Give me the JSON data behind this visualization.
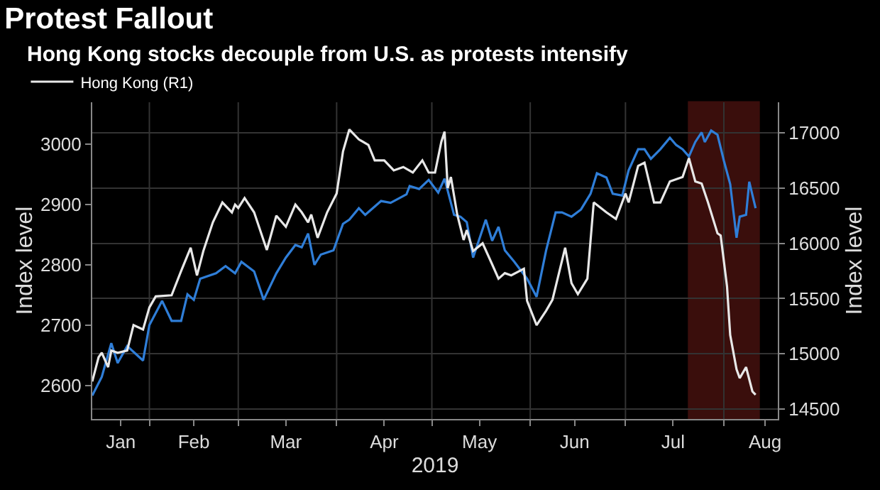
{
  "chart_data": {
    "type": "line",
    "title": "Protest Fallout",
    "subtitle": "Hong Kong stocks decouple from U.S. as protests intensify",
    "xlabel": "2019",
    "ylabel": "Index level",
    "y2label": "Index level",
    "series": [
      {
        "name": "Hong Kong (R1)",
        "color": "#e8e8e8",
        "axis": "y2",
        "x": [
          "2019-01-14",
          "2019-01-16",
          "2019-01-17",
          "2019-01-19",
          "2019-01-20",
          "2019-01-22",
          "2019-01-25",
          "2019-01-27",
          "2019-01-30",
          "2019-02-01",
          "2019-02-03",
          "2019-02-08",
          "2019-02-11",
          "2019-02-14",
          "2019-02-16",
          "2019-02-18",
          "2019-02-21",
          "2019-02-24",
          "2019-02-27",
          "2019-02-28",
          "2019-03-01",
          "2019-03-03",
          "2019-03-06",
          "2019-03-10",
          "2019-03-13",
          "2019-03-16",
          "2019-03-19",
          "2019-03-21",
          "2019-03-23",
          "2019-03-24",
          "2019-03-26",
          "2019-03-29",
          "2019-04-01",
          "2019-04-03",
          "2019-04-05",
          "2019-04-08",
          "2019-04-11",
          "2019-04-13",
          "2019-04-16",
          "2019-04-19",
          "2019-04-22",
          "2019-04-25",
          "2019-04-28",
          "2019-04-30",
          "2019-05-02",
          "2019-05-04",
          "2019-05-05",
          "2019-05-06",
          "2019-05-07",
          "2019-05-09",
          "2019-05-11",
          "2019-05-12",
          "2019-05-14",
          "2019-05-17",
          "2019-05-20",
          "2019-05-22",
          "2019-05-24",
          "2019-05-26",
          "2019-05-30",
          "2019-05-31",
          "2019-06-03",
          "2019-06-06",
          "2019-06-08",
          "2019-06-12",
          "2019-06-14",
          "2019-06-16",
          "2019-06-19",
          "2019-06-21",
          "2019-06-25",
          "2019-06-28",
          "2019-07-01",
          "2019-07-02",
          "2019-07-05",
          "2019-07-07",
          "2019-07-10",
          "2019-07-12",
          "2019-07-15",
          "2019-07-19",
          "2019-07-21",
          "2019-07-23",
          "2019-07-25",
          "2019-07-27",
          "2019-07-30",
          "2019-07-31",
          "2019-08-02",
          "2019-08-03",
          "2019-08-05",
          "2019-08-06",
          "2019-08-08",
          "2019-08-10",
          "2019-08-11"
        ],
        "values": [
          14750,
          14970,
          15010,
          14880,
          15030,
          15010,
          15030,
          15260,
          15220,
          15420,
          15520,
          15530,
          15750,
          15960,
          15710,
          15930,
          16190,
          16370,
          16280,
          16350,
          16320,
          16410,
          16280,
          15940,
          16250,
          16150,
          16350,
          16280,
          16190,
          16260,
          16050,
          16280,
          16450,
          16830,
          17030,
          16940,
          16890,
          16750,
          16750,
          16660,
          16690,
          16640,
          16750,
          16640,
          16640,
          16920,
          17010,
          16500,
          16600,
          16260,
          16030,
          16120,
          15930,
          16000,
          15810,
          15680,
          15730,
          15710,
          15770,
          15480,
          15260,
          15390,
          15490,
          15960,
          15640,
          15540,
          15680,
          16370,
          16280,
          16220,
          16450,
          16370,
          16700,
          16730,
          16370,
          16370,
          16560,
          16600,
          16770,
          16560,
          16540,
          16370,
          16090,
          16070,
          15610,
          15170,
          14860,
          14780,
          14880,
          14660,
          14630
        ]
      },
      {
        "color": "#2f7ed8",
        "axis": "y",
        "x": [
          "2019-01-14",
          "2019-01-17",
          "2019-01-20",
          "2019-01-22",
          "2019-01-25",
          "2019-01-30",
          "2019-02-01",
          "2019-02-05",
          "2019-02-08",
          "2019-02-11",
          "2019-02-13",
          "2019-02-15",
          "2019-02-17",
          "2019-02-22",
          "2019-02-25",
          "2019-02-28",
          "2019-03-02",
          "2019-03-06",
          "2019-03-09",
          "2019-03-13",
          "2019-03-16",
          "2019-03-19",
          "2019-03-21",
          "2019-03-23",
          "2019-03-25",
          "2019-03-27",
          "2019-03-31",
          "2019-04-03",
          "2019-04-05",
          "2019-04-08",
          "2019-04-10",
          "2019-04-15",
          "2019-04-18",
          "2019-04-23",
          "2019-04-24",
          "2019-04-27",
          "2019-04-30",
          "2019-05-03",
          "2019-05-05",
          "2019-05-08",
          "2019-05-10",
          "2019-05-12",
          "2019-05-14",
          "2019-05-18",
          "2019-05-20",
          "2019-05-22",
          "2019-05-24",
          "2019-05-27",
          "2019-05-31",
          "2019-06-03",
          "2019-06-06",
          "2019-06-09",
          "2019-06-11",
          "2019-06-14",
          "2019-06-17",
          "2019-06-20",
          "2019-06-22",
          "2019-06-25",
          "2019-06-27",
          "2019-06-30",
          "2019-07-02",
          "2019-07-05",
          "2019-07-07",
          "2019-07-09",
          "2019-07-12",
          "2019-07-15",
          "2019-07-17",
          "2019-07-19",
          "2019-07-21",
          "2019-07-23",
          "2019-07-25",
          "2019-07-26",
          "2019-07-28",
          "2019-07-30",
          "2019-08-01",
          "2019-08-03",
          "2019-08-05",
          "2019-08-06",
          "2019-08-08",
          "2019-08-09",
          "2019-08-11"
        ],
        "values": [
          2583,
          2614,
          2670,
          2637,
          2665,
          2641,
          2700,
          2740,
          2707,
          2707,
          2751,
          2742,
          2777,
          2786,
          2798,
          2786,
          2805,
          2789,
          2742,
          2786,
          2812,
          2833,
          2829,
          2852,
          2800,
          2817,
          2824,
          2868,
          2875,
          2894,
          2883,
          2906,
          2903,
          2917,
          2931,
          2926,
          2941,
          2920,
          2943,
          2883,
          2880,
          2871,
          2812,
          2875,
          2840,
          2863,
          2824,
          2805,
          2777,
          2747,
          2824,
          2887,
          2887,
          2880,
          2892,
          2918,
          2952,
          2945,
          2918,
          2915,
          2957,
          2992,
          2992,
          2976,
          2992,
          3011,
          2999,
          2992,
          2980,
          3004,
          3020,
          3004,
          3023,
          3016,
          2973,
          2934,
          2845,
          2880,
          2883,
          2938,
          2894
        ]
      }
    ],
    "xlim": [
      "2019-01-14",
      "2019-08-18"
    ],
    "xticks": [
      {
        "value": "2019-01-23",
        "label": "Jan"
      },
      {
        "value": "2019-02-01",
        "label": null
      },
      {
        "value": "2019-02-15",
        "label": "Feb"
      },
      {
        "value": "2019-03-01",
        "label": null
      },
      {
        "value": "2019-03-16",
        "label": "Mar"
      },
      {
        "value": "2019-04-01",
        "label": null
      },
      {
        "value": "2019-04-16",
        "label": "Apr"
      },
      {
        "value": "2019-05-01",
        "label": null
      },
      {
        "value": "2019-05-16",
        "label": "May"
      },
      {
        "value": "2019-06-01",
        "label": null
      },
      {
        "value": "2019-06-15",
        "label": "Jun"
      },
      {
        "value": "2019-07-01",
        "label": null
      },
      {
        "value": "2019-07-16",
        "label": "Jul"
      },
      {
        "value": "2019-08-01",
        "label": null
      },
      {
        "value": "2019-08-14",
        "label": "Aug"
      }
    ],
    "ylim": [
      2544,
      3070
    ],
    "yticks": [
      2600,
      2700,
      2800,
      2900,
      3000
    ],
    "y2lim": [
      14411,
      17276
    ],
    "y2ticks": [
      14500,
      15000,
      15500,
      16000,
      16500,
      17000
    ],
    "bands": [
      {
        "axis": "x",
        "from": "2019-07-21",
        "to": "2019-08-12",
        "color": "#c0302a"
      }
    ],
    "grid": true,
    "legend": "top left",
    "marker": "none",
    "line_style": "solid"
  }
}
